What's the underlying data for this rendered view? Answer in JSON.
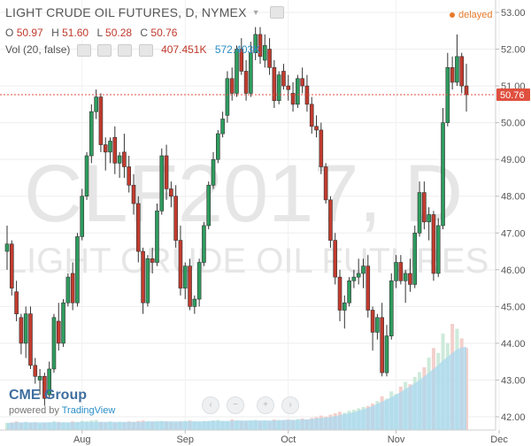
{
  "header": {
    "title": "LIGHT CRUDE OIL FUTURES, D, NYMEX",
    "ohlc": {
      "o_label": "O",
      "o": "50.97",
      "h_label": "H",
      "h": "51.60",
      "l_label": "L",
      "l": "50.28",
      "c_label": "C",
      "c": "50.76"
    },
    "volume": {
      "label": "Vol (20, false)",
      "v1": "407.451K",
      "v2": "572.403K"
    },
    "delayed": "delayed"
  },
  "watermark": {
    "line1": "CLF2017, D",
    "line2": "LIGHT CRUDE OIL FUTURES"
  },
  "branding": {
    "name": "CME Group",
    "powered": "powered by",
    "provider": "TradingView"
  },
  "colors": {
    "up": "#2e9c5e",
    "down": "#c23b2e",
    "last_price": "#e0503f",
    "volume": "#9dd0ea"
  },
  "chart_data": {
    "type": "candlestick",
    "ylim": [
      42,
      53
    ],
    "yticks": [
      "42.00",
      "43.00",
      "44.00",
      "45.00",
      "46.00",
      "47.00",
      "48.00",
      "49.00",
      "50.00",
      "51.00",
      "52.00",
      "53.00"
    ],
    "x_labels": [
      "Aug",
      "Sep",
      "Oct",
      "Nov",
      "Dec"
    ],
    "x_label_index": [
      16,
      38,
      60,
      83,
      105
    ],
    "last_price": 50.76,
    "last_price_label": "50.76",
    "candles": [
      [
        46.5,
        47.2,
        46.0,
        46.7
      ],
      [
        46.7,
        46.8,
        45.3,
        45.5
      ],
      [
        45.4,
        45.7,
        44.6,
        44.8
      ],
      [
        44.7,
        44.8,
        43.7,
        44.0
      ],
      [
        44.0,
        45.0,
        43.6,
        44.8
      ],
      [
        44.8,
        45.0,
        43.3,
        43.4
      ],
      [
        43.4,
        43.6,
        42.9,
        43.1
      ],
      [
        43.0,
        43.3,
        42.6,
        43.1
      ],
      [
        43.1,
        43.2,
        42.3,
        42.5
      ],
      [
        42.6,
        43.5,
        42.5,
        43.3
      ],
      [
        43.3,
        44.8,
        43.2,
        44.7
      ],
      [
        44.6,
        45.1,
        43.8,
        44.0
      ],
      [
        44.0,
        45.2,
        43.9,
        45.1
      ],
      [
        45.1,
        45.9,
        45.0,
        45.8
      ],
      [
        45.9,
        46.2,
        44.9,
        45.1
      ],
      [
        45.1,
        47.0,
        45.0,
        46.9
      ],
      [
        46.9,
        48.2,
        46.8,
        48.0
      ],
      [
        48.0,
        49.2,
        47.9,
        49.1
      ],
      [
        49.1,
        50.5,
        48.9,
        50.3
      ],
      [
        50.3,
        50.9,
        50.1,
        50.7
      ],
      [
        50.7,
        50.8,
        49.2,
        49.4
      ],
      [
        49.4,
        49.6,
        48.7,
        49.2
      ],
      [
        49.2,
        49.6,
        48.9,
        49.5
      ],
      [
        49.6,
        49.9,
        48.6,
        48.9
      ],
      [
        48.9,
        49.2,
        48.5,
        49.1
      ],
      [
        49.2,
        49.7,
        48.5,
        48.8
      ],
      [
        48.8,
        49.1,
        48.1,
        48.3
      ],
      [
        48.3,
        48.6,
        47.5,
        47.8
      ],
      [
        47.8,
        48.0,
        46.2,
        46.5
      ],
      [
        46.5,
        46.6,
        44.8,
        45.1
      ],
      [
        45.1,
        46.4,
        45.0,
        46.3
      ],
      [
        46.3,
        46.6,
        45.9,
        46.2
      ],
      [
        46.2,
        47.8,
        46.1,
        47.6
      ],
      [
        47.6,
        49.3,
        47.5,
        49.1
      ],
      [
        49.1,
        49.4,
        47.9,
        48.2
      ],
      [
        48.2,
        48.4,
        47.7,
        48.0
      ],
      [
        48.0,
        48.3,
        46.6,
        46.8
      ],
      [
        46.8,
        47.2,
        45.3,
        45.5
      ],
      [
        45.5,
        46.2,
        45.2,
        46.1
      ],
      [
        46.1,
        46.3,
        44.9,
        45.0
      ],
      [
        45.0,
        45.3,
        44.8,
        45.2
      ],
      [
        45.2,
        46.3,
        45.0,
        46.2
      ],
      [
        46.2,
        47.3,
        46.1,
        47.2
      ],
      [
        47.2,
        48.4,
        47.1,
        48.3
      ],
      [
        48.3,
        49.2,
        48.2,
        49.0
      ],
      [
        49.0,
        49.8,
        48.9,
        49.7
      ],
      [
        49.7,
        50.3,
        49.6,
        50.1
      ],
      [
        50.2,
        51.4,
        50.0,
        51.2
      ],
      [
        51.2,
        51.5,
        50.6,
        50.8
      ],
      [
        50.8,
        52.1,
        50.7,
        52.0
      ],
      [
        52.0,
        52.3,
        51.3,
        51.4
      ],
      [
        51.4,
        51.7,
        50.6,
        50.8
      ],
      [
        50.8,
        52.2,
        50.7,
        51.9
      ],
      [
        51.9,
        52.6,
        51.7,
        52.4
      ],
      [
        52.4,
        52.6,
        51.6,
        51.8
      ],
      [
        51.7,
        52.4,
        51.5,
        52.1
      ],
      [
        52.0,
        52.3,
        51.3,
        51.5
      ],
      [
        51.5,
        51.7,
        50.4,
        50.6
      ],
      [
        50.6,
        51.4,
        50.5,
        51.3
      ],
      [
        51.4,
        51.6,
        50.9,
        51.0
      ],
      [
        51.0,
        51.3,
        50.6,
        50.9
      ],
      [
        50.8,
        51.1,
        50.3,
        50.5
      ],
      [
        50.5,
        51.3,
        50.4,
        51.2
      ],
      [
        51.2,
        51.5,
        50.8,
        51.0
      ],
      [
        51.0,
        51.3,
        50.3,
        50.5
      ],
      [
        50.5,
        50.7,
        49.7,
        49.9
      ],
      [
        49.9,
        50.2,
        49.6,
        49.8
      ],
      [
        49.8,
        50.0,
        48.6,
        48.8
      ],
      [
        48.8,
        48.9,
        47.8,
        47.9
      ],
      [
        47.9,
        48.0,
        46.6,
        46.8
      ],
      [
        46.8,
        47.0,
        45.6,
        45.8
      ],
      [
        45.8,
        46.0,
        44.6,
        44.9
      ],
      [
        44.9,
        45.3,
        44.4,
        45.1
      ],
      [
        45.1,
        45.8,
        45.0,
        45.7
      ],
      [
        45.7,
        46.0,
        45.5,
        45.8
      ],
      [
        45.8,
        46.3,
        45.6,
        45.9
      ],
      [
        45.9,
        46.3,
        45.5,
        46.1
      ],
      [
        46.1,
        46.4,
        44.7,
        44.9
      ],
      [
        44.9,
        45.0,
        43.8,
        44.3
      ],
      [
        44.3,
        44.8,
        44.1,
        44.7
      ],
      [
        44.7,
        45.1,
        43.1,
        43.2
      ],
      [
        43.2,
        44.5,
        43.1,
        44.2
      ],
      [
        44.2,
        45.9,
        44.1,
        45.7
      ],
      [
        45.7,
        46.4,
        45.5,
        46.2
      ],
      [
        46.2,
        46.4,
        45.6,
        45.7
      ],
      [
        45.7,
        46.0,
        45.1,
        45.9
      ],
      [
        45.9,
        46.3,
        45.4,
        45.6
      ],
      [
        45.6,
        47.2,
        45.5,
        47.0
      ],
      [
        47.0,
        48.4,
        46.9,
        48.1
      ],
      [
        48.1,
        48.4,
        47.1,
        47.3
      ],
      [
        47.3,
        47.7,
        46.8,
        47.5
      ],
      [
        47.5,
        47.6,
        45.7,
        45.9
      ],
      [
        45.9,
        47.4,
        45.8,
        47.2
      ],
      [
        47.2,
        50.4,
        47.1,
        50.0
      ],
      [
        50.0,
        51.9,
        49.9,
        51.5
      ],
      [
        51.5,
        51.8,
        50.9,
        51.1
      ],
      [
        51.1,
        52.4,
        51.0,
        51.8
      ],
      [
        51.8,
        51.9,
        50.8,
        51.0
      ],
      [
        51.0,
        51.6,
        50.3,
        50.76
      ]
    ],
    "volume": [
      15,
      16,
      18,
      15,
      17,
      15,
      16,
      14,
      15,
      16,
      18,
      17,
      16,
      15,
      18,
      17,
      19,
      18,
      20,
      21,
      17,
      16,
      18,
      15,
      17,
      16,
      18,
      17,
      19,
      20,
      18,
      17,
      18,
      19,
      18,
      17,
      16,
      18,
      19,
      20,
      18,
      17,
      19,
      18,
      20,
      21,
      19,
      18,
      22,
      20,
      19,
      18,
      20,
      21,
      19,
      20,
      18,
      22,
      21,
      20,
      22,
      21,
      23,
      24,
      22,
      25,
      27,
      30,
      28,
      32,
      35,
      38,
      36,
      40,
      42,
      45,
      48,
      50,
      55,
      60,
      70,
      65,
      80,
      75,
      90,
      100,
      95,
      110,
      120,
      130,
      150,
      170,
      160,
      200,
      180,
      220,
      210,
      190,
      170
    ],
    "volume_ma": [
      15,
      15,
      16,
      16,
      16,
      16,
      16,
      16,
      16,
      16,
      16,
      16,
      16,
      16,
      16,
      16,
      17,
      17,
      17,
      17,
      17,
      17,
      17,
      17,
      17,
      17,
      17,
      17,
      17,
      17,
      18,
      18,
      18,
      18,
      18,
      18,
      18,
      18,
      18,
      18,
      18,
      18,
      18,
      19,
      19,
      19,
      19,
      19,
      19,
      20,
      20,
      20,
      20,
      20,
      20,
      20,
      20,
      20,
      20,
      21,
      21,
      21,
      21,
      22,
      22,
      23,
      24,
      25,
      26,
      27,
      29,
      31,
      33,
      35,
      37,
      40,
      43,
      46,
      50,
      54,
      59,
      63,
      68,
      73,
      79,
      85,
      91,
      97,
      104,
      111,
      119,
      127,
      135,
      144,
      152,
      160,
      167,
      171,
      173
    ]
  }
}
